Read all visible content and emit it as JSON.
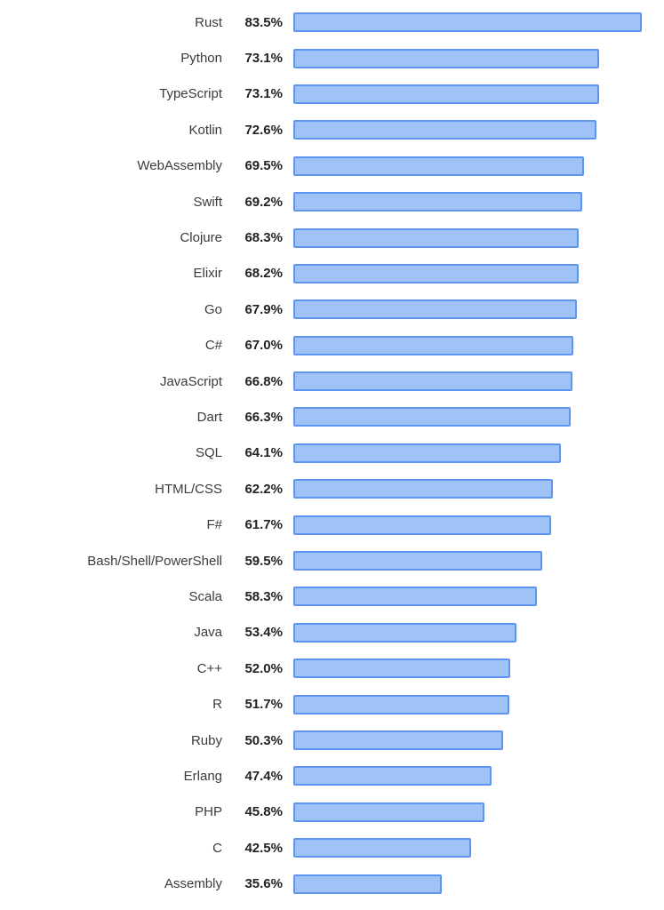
{
  "chart_data": {
    "type": "bar",
    "orientation": "horizontal",
    "title": "",
    "xlabel": "",
    "ylabel": "",
    "xlim": [
      0,
      100
    ],
    "grid": false,
    "legend": false,
    "value_format": "percent",
    "categories": [
      "Rust",
      "Python",
      "TypeScript",
      "Kotlin",
      "WebAssembly",
      "Swift",
      "Clojure",
      "Elixir",
      "Go",
      "C#",
      "JavaScript",
      "Dart",
      "SQL",
      "HTML/CSS",
      "F#",
      "Bash/Shell/PowerShell",
      "Scala",
      "Java",
      "C++",
      "R",
      "Ruby",
      "Erlang",
      "PHP",
      "C",
      "Assembly"
    ],
    "values": [
      83.5,
      73.1,
      73.1,
      72.6,
      69.5,
      69.2,
      68.3,
      68.2,
      67.9,
      67.0,
      66.8,
      66.3,
      64.1,
      62.2,
      61.7,
      59.5,
      58.3,
      53.4,
      52.0,
      51.7,
      50.3,
      47.4,
      45.8,
      42.5,
      35.6
    ],
    "value_labels": [
      "83.5%",
      "73.1%",
      "73.1%",
      "72.6%",
      "69.5%",
      "69.2%",
      "68.3%",
      "68.2%",
      "67.9%",
      "67.0%",
      "66.8%",
      "66.3%",
      "64.1%",
      "62.2%",
      "61.7%",
      "59.5%",
      "58.3%",
      "53.4%",
      "52.0%",
      "51.7%",
      "50.3%",
      "47.4%",
      "45.8%",
      "42.5%",
      "35.6%"
    ],
    "colors": {
      "bar_fill": "#A0C3F7",
      "bar_border": "#6095EF",
      "label": "#3B3B3B",
      "value": "#222222",
      "background": "#FFFFFF"
    }
  }
}
